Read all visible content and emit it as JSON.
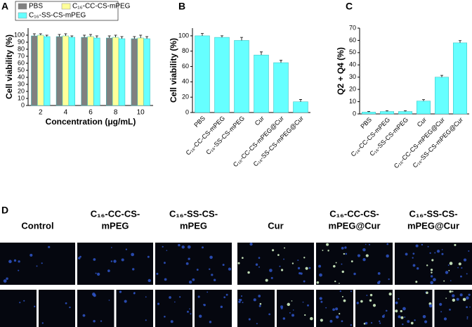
{
  "chart_data": [
    {
      "type": "bar",
      "panel_label": "A",
      "xlabel": "Concentration (μg/mL)",
      "ylabel": "Cell viability (%)",
      "categories": [
        "2",
        "4",
        "6",
        "8",
        "10"
      ],
      "series": [
        {
          "name": "PBS",
          "color": "#808080",
          "values": [
            99,
            98,
            97,
            96,
            95
          ],
          "errors": [
            3,
            3,
            3,
            3,
            3
          ]
        },
        {
          "name": "C₁₆-CC-CS-mPEG",
          "color": "#ffff99",
          "values": [
            100,
            99,
            98,
            97,
            96
          ],
          "errors": [
            2,
            3,
            3,
            3,
            4
          ]
        },
        {
          "name": "C₁₆-SS-CS-mPEG",
          "color": "#66ffff",
          "values": [
            98,
            97,
            96,
            95,
            95
          ],
          "errors": [
            2,
            2,
            3,
            3,
            3
          ]
        }
      ],
      "ylim": [
        0,
        110
      ],
      "yticks": [
        0,
        10,
        20,
        30,
        40,
        50,
        60,
        70,
        80,
        90,
        100
      ]
    },
    {
      "type": "bar",
      "panel_label": "B",
      "ylabel": "Cell viability (%)",
      "categories": [
        "PBS",
        "C₁₆-CC-CS-mPEG",
        "C₁₆-SS-CS-mPEG",
        "Cur",
        "C₁₆-CC-CS-mPEG@Cur",
        "C₁₆-SS-CS-mPEG@Cur"
      ],
      "values": [
        100,
        98,
        94,
        75,
        65,
        14
      ],
      "errors": [
        3,
        2,
        4,
        4,
        3,
        3
      ],
      "color": "#66ffff",
      "ylim": [
        0,
        110
      ],
      "yticks": [
        0,
        20,
        40,
        60,
        80,
        100
      ]
    },
    {
      "type": "bar",
      "panel_label": "C",
      "ylabel": "Q2 + Q4 (%)",
      "categories": [
        "PBS",
        "C₁₆-CC-CS-mPEG",
        "C₁₆-SS-CS-mPEG",
        "Cur",
        "C₁₆-CC-CS-mPEG@Cur",
        "C₁₆-SS-CS-mPEG@Cur"
      ],
      "values": [
        1.5,
        2,
        2,
        10.5,
        30,
        58
      ],
      "errors": [
        0.5,
        0.6,
        0.6,
        1.2,
        1.5,
        1.8
      ],
      "color": "#66ffff",
      "ylim": [
        0,
        70
      ],
      "yticks": [
        0,
        10,
        20,
        30,
        40,
        50,
        60,
        70
      ]
    }
  ],
  "panel_d": {
    "label": "D",
    "titles": [
      [
        "Control"
      ],
      [
        "C₁₆-CC-CS-",
        "mPEG"
      ],
      [
        "C₁₆-SS-CS-",
        "mPEG"
      ],
      [
        "Cur"
      ],
      [
        "C₁₆-CC-CS-",
        "mPEG@Cur"
      ],
      [
        "C₁₆-SS-CS-",
        "mPEG@Cur"
      ]
    ]
  }
}
